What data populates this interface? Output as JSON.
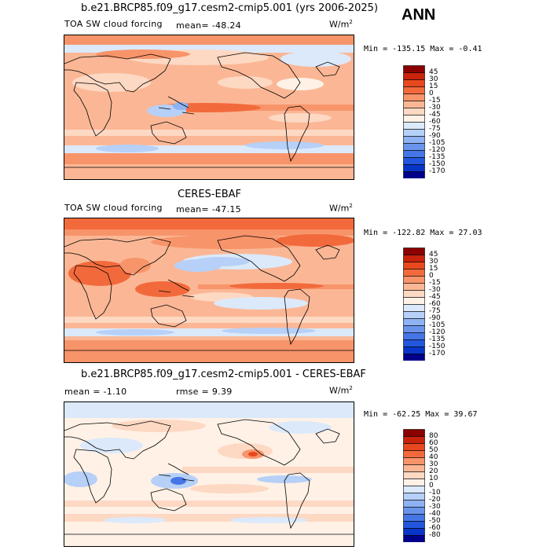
{
  "season": "ANN",
  "units_base": "W/m",
  "units_exp": "2",
  "panels": [
    {
      "title": "b.e21.BRCP85.f09_g17.cesm2-cmip5.001 (yrs 2006-2025)",
      "variable": "TOA SW cloud forcing",
      "mean_text": "mean= -48.24",
      "minmax_text": "Min = -135.15 Max =  -0.41",
      "colorbar": {
        "labels": [
          "45",
          "30",
          "15",
          "0",
          "-15",
          "-30",
          "-45",
          "-60",
          "-75",
          "-90",
          "-105",
          "-120",
          "-135",
          "-150",
          "-170"
        ],
        "colors": [
          "#8b0000",
          "#c8230b",
          "#e8481e",
          "#f26a3c",
          "#f8946a",
          "#fbb795",
          "#fdd8c3",
          "#fff1e6",
          "#dbe9fb",
          "#b6d0f7",
          "#8eb2f2",
          "#6a94ec",
          "#4676e6",
          "#2356dc",
          "#0835c8",
          "#00008b"
        ]
      }
    },
    {
      "title": "CERES-EBAF",
      "variable": "TOA SW cloud forcing",
      "mean_text": "mean= -47.15",
      "minmax_text": "Min = -122.82 Max =  27.03",
      "colorbar": {
        "labels": [
          "45",
          "30",
          "15",
          "0",
          "-15",
          "-30",
          "-45",
          "-60",
          "-75",
          "-90",
          "-105",
          "-120",
          "-135",
          "-150",
          "-170"
        ],
        "colors": [
          "#8b0000",
          "#c8230b",
          "#e8481e",
          "#f26a3c",
          "#f8946a",
          "#fbb795",
          "#fdd8c3",
          "#fff1e6",
          "#dbe9fb",
          "#b6d0f7",
          "#8eb2f2",
          "#6a94ec",
          "#4676e6",
          "#2356dc",
          "#0835c8",
          "#00008b"
        ]
      }
    },
    {
      "title": "b.e21.BRCP85.f09_g17.cesm2-cmip5.001 - CERES-EBAF",
      "mean_text": "mean =  -1.10",
      "rmse_text": "rmse =   9.39",
      "minmax_text": "Min = -62.25 Max =  39.67",
      "colorbar": {
        "labels": [
          "80",
          "60",
          "50",
          "40",
          "30",
          "20",
          "10",
          "0",
          "-10",
          "-20",
          "-30",
          "-40",
          "-50",
          "-60",
          "-80"
        ],
        "colors": [
          "#8b0000",
          "#c8230b",
          "#e8481e",
          "#f26a3c",
          "#f8946a",
          "#fbb795",
          "#fdd8c3",
          "#fff1e6",
          "#dbe9fb",
          "#b6d0f7",
          "#8eb2f2",
          "#6a94ec",
          "#4676e6",
          "#2356dc",
          "#0835c8",
          "#00008b"
        ]
      }
    }
  ]
}
